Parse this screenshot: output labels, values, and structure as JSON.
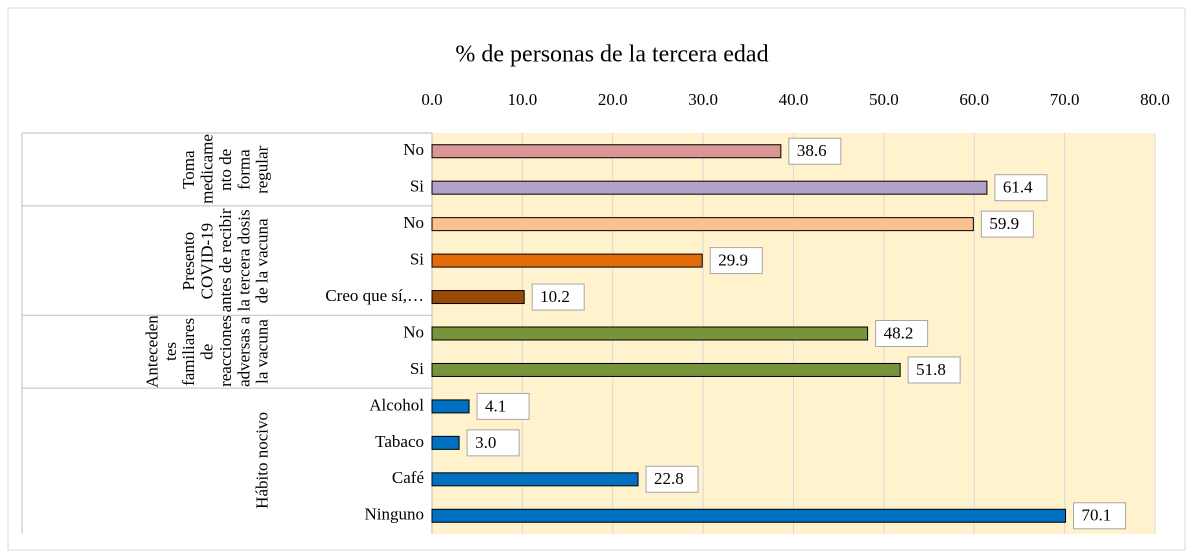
{
  "chart_data": {
    "type": "bar",
    "orientation": "horizontal",
    "title": "% de personas de la tercera edad",
    "xlim": [
      0,
      80
    ],
    "xticks": [
      {
        "value": 0,
        "label": "0.0"
      },
      {
        "value": 10,
        "label": "10.0"
      },
      {
        "value": 20,
        "label": "20.0"
      },
      {
        "value": 30,
        "label": "30.0"
      },
      {
        "value": 40,
        "label": "40.0"
      },
      {
        "value": 50,
        "label": "50.0"
      },
      {
        "value": 60,
        "label": "60.0"
      },
      {
        "value": 70,
        "label": "70.0"
      },
      {
        "value": 80,
        "label": "80.0"
      }
    ],
    "grid": true,
    "groups": [
      {
        "name": "Toma medicamento de forma regular",
        "categories": [
          "No",
          "Si"
        ],
        "values": [
          38.6,
          61.4
        ],
        "value_labels": [
          "38.6",
          "61.4"
        ],
        "colors": [
          "#d99694",
          "#b3a2c7"
        ]
      },
      {
        "name": "Presento COVID-19 antes de recibir la tercera dosis de la vacuna",
        "categories": [
          "No",
          "Si",
          "Creo que sí,…"
        ],
        "values": [
          59.9,
          29.9,
          10.2
        ],
        "value_labels": [
          "59.9",
          "29.9",
          "10.2"
        ],
        "colors": [
          "#fac090",
          "#e36c09",
          "#984807"
        ]
      },
      {
        "name": "Antecedentes familiares de reacciones adversas a la vacuna",
        "categories": [
          "No",
          "Si"
        ],
        "values": [
          48.2,
          51.8
        ],
        "value_labels": [
          "48.2",
          "51.8"
        ],
        "colors": [
          "#77933c",
          "#77933c"
        ]
      },
      {
        "name": "Hábito nocivo",
        "categories": [
          "Alcohol",
          "Tabaco",
          "Café",
          "Ninguno"
        ],
        "values": [
          4.1,
          3.0,
          22.8,
          70.1
        ],
        "value_labels": [
          "4.1",
          "3.0",
          "22.8",
          "70.1"
        ],
        "colors": [
          "#0070c0",
          "#0070c0",
          "#0070c0",
          "#0070c0"
        ]
      }
    ]
  }
}
